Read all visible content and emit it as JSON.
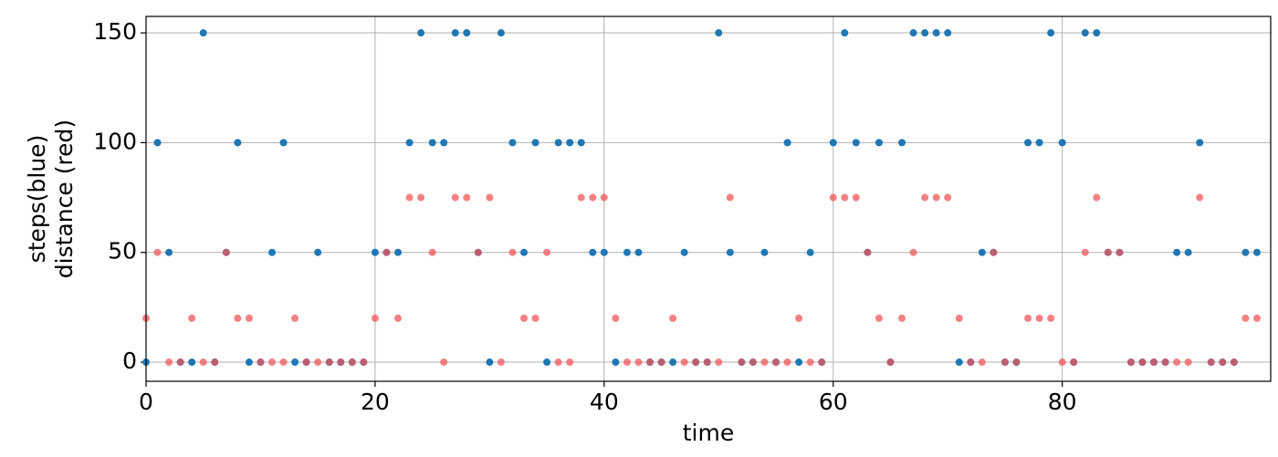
{
  "chart_data": {
    "type": "scatter",
    "xlabel": "time",
    "ylabel": [
      "steps(blue)",
      "distance (red)"
    ],
    "x": [
      0,
      1,
      2,
      3,
      4,
      5,
      6,
      7,
      8,
      9,
      10,
      11,
      12,
      13,
      14,
      15,
      16,
      17,
      18,
      19,
      20,
      21,
      22,
      23,
      24,
      25,
      26,
      27,
      28,
      29,
      30,
      31,
      32,
      33,
      34,
      35,
      36,
      37,
      38,
      39,
      40,
      41,
      42,
      43,
      44,
      45,
      46,
      47,
      48,
      49,
      50,
      51,
      52,
      53,
      54,
      55,
      56,
      57,
      58,
      59,
      60,
      61,
      62,
      63,
      64,
      65,
      66,
      67,
      68,
      69,
      70,
      71,
      72,
      73,
      74,
      75,
      76,
      77,
      78,
      79,
      80,
      81,
      82,
      83,
      84,
      85,
      86,
      87,
      88,
      89,
      90,
      91,
      92,
      93,
      94,
      95,
      96,
      97
    ],
    "series": [
      {
        "color": "#1f77b4",
        "values": [
          0,
          100,
          50,
          0,
          0,
          150,
          0,
          50,
          100,
          0,
          0,
          50,
          100,
          0,
          0,
          50,
          0,
          0,
          0,
          0,
          50,
          50,
          50,
          100,
          150,
          100,
          100,
          150,
          150,
          50,
          0,
          150,
          100,
          50,
          100,
          0,
          100,
          100,
          100,
          50,
          50,
          0,
          50,
          50,
          0,
          0,
          0,
          50,
          0,
          0,
          150,
          50,
          0,
          0,
          50,
          0,
          100,
          0,
          50,
          0,
          100,
          150,
          100,
          50,
          100,
          0,
          100,
          150,
          150,
          150,
          150,
          0,
          0,
          50,
          50,
          0,
          0,
          100,
          100,
          150,
          100,
          0,
          150,
          150,
          50,
          50,
          0,
          0,
          0,
          0,
          50,
          50,
          100,
          0,
          0,
          0,
          50,
          50
        ]
      },
      {
        "color": "#f0565a",
        "values": [
          20,
          50,
          0,
          0,
          20,
          0,
          0,
          50,
          20,
          20,
          0,
          0,
          0,
          20,
          0,
          0,
          0,
          0,
          0,
          0,
          20,
          50,
          20,
          75,
          75,
          50,
          0,
          75,
          75,
          50,
          75,
          0,
          50,
          20,
          20,
          50,
          0,
          0,
          75,
          75,
          75,
          20,
          0,
          0,
          0,
          0,
          20,
          0,
          0,
          0,
          0,
          75,
          0,
          0,
          0,
          0,
          0,
          20,
          0,
          0,
          75,
          75,
          75,
          50,
          20,
          0,
          20,
          50,
          75,
          75,
          75,
          20,
          0,
          0,
          50,
          0,
          0,
          20,
          20,
          20,
          0,
          0,
          50,
          75,
          50,
          50,
          0,
          0,
          0,
          0,
          0,
          0,
          75,
          0,
          0,
          0,
          20,
          20
        ]
      }
    ],
    "xlim": [
      0,
      98.2
    ],
    "ylim": [
      -8.7,
      157.5
    ],
    "xticks": [
      0,
      20,
      40,
      60,
      80
    ],
    "yticks": [
      0,
      50,
      100,
      150
    ],
    "grid": true
  }
}
